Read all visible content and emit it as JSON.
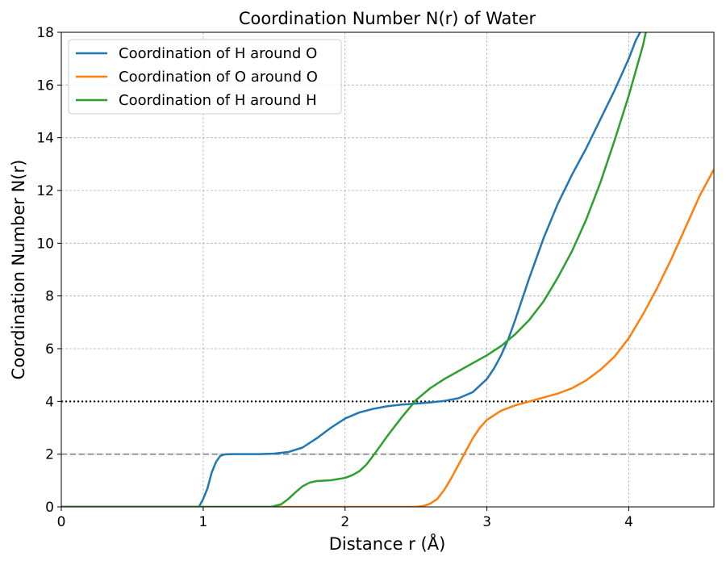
{
  "chart_data": {
    "type": "line",
    "title": "Coordination Number N(r) of Water",
    "xlabel": "Distance r (Å)",
    "ylabel": "Coordination Number N(r)",
    "xlim": [
      0,
      4.6
    ],
    "ylim": [
      0,
      18
    ],
    "x_ticks": [
      0,
      1,
      2,
      3,
      4
    ],
    "y_ticks": [
      0,
      2,
      4,
      6,
      8,
      10,
      12,
      14,
      16,
      18
    ],
    "x_tick_labels": [
      "0",
      "1",
      "2",
      "3",
      "4"
    ],
    "y_tick_labels": [
      "0",
      "2",
      "4",
      "6",
      "8",
      "10",
      "12",
      "14",
      "16",
      "18"
    ],
    "grid": true,
    "legend_position": "top-left",
    "series": [
      {
        "name": "Coordination of H around O",
        "color": "#1f77b4",
        "points": [
          [
            0,
            0
          ],
          [
            0.97,
            0
          ],
          [
            1.0,
            0.3
          ],
          [
            1.03,
            0.7
          ],
          [
            1.06,
            1.3
          ],
          [
            1.09,
            1.7
          ],
          [
            1.12,
            1.93
          ],
          [
            1.15,
            1.99
          ],
          [
            1.2,
            2.0
          ],
          [
            1.4,
            2.0
          ],
          [
            1.5,
            2.02
          ],
          [
            1.6,
            2.08
          ],
          [
            1.7,
            2.25
          ],
          [
            1.8,
            2.6
          ],
          [
            1.9,
            3.0
          ],
          [
            2.0,
            3.35
          ],
          [
            2.1,
            3.58
          ],
          [
            2.2,
            3.72
          ],
          [
            2.3,
            3.82
          ],
          [
            2.4,
            3.88
          ],
          [
            2.5,
            3.92
          ],
          [
            2.6,
            3.96
          ],
          [
            2.7,
            4.02
          ],
          [
            2.8,
            4.12
          ],
          [
            2.9,
            4.35
          ],
          [
            3.0,
            4.85
          ],
          [
            3.05,
            5.25
          ],
          [
            3.1,
            5.75
          ],
          [
            3.15,
            6.35
          ],
          [
            3.2,
            7.1
          ],
          [
            3.3,
            8.7
          ],
          [
            3.4,
            10.2
          ],
          [
            3.5,
            11.5
          ],
          [
            3.6,
            12.6
          ],
          [
            3.7,
            13.6
          ],
          [
            3.8,
            14.7
          ],
          [
            3.9,
            15.8
          ],
          [
            4.0,
            17.0
          ],
          [
            4.05,
            17.7
          ],
          [
            4.08,
            18.0
          ]
        ]
      },
      {
        "name": "Coordination of O around O",
        "color": "#ff7f0e",
        "points": [
          [
            0,
            0
          ],
          [
            2.5,
            0
          ],
          [
            2.55,
            0.03
          ],
          [
            2.6,
            0.12
          ],
          [
            2.65,
            0.3
          ],
          [
            2.7,
            0.65
          ],
          [
            2.75,
            1.1
          ],
          [
            2.8,
            1.6
          ],
          [
            2.85,
            2.1
          ],
          [
            2.9,
            2.6
          ],
          [
            2.95,
            3.0
          ],
          [
            3.0,
            3.3
          ],
          [
            3.1,
            3.65
          ],
          [
            3.2,
            3.85
          ],
          [
            3.3,
            4.0
          ],
          [
            3.4,
            4.15
          ],
          [
            3.5,
            4.3
          ],
          [
            3.6,
            4.5
          ],
          [
            3.7,
            4.8
          ],
          [
            3.8,
            5.2
          ],
          [
            3.9,
            5.7
          ],
          [
            4.0,
            6.4
          ],
          [
            4.1,
            7.3
          ],
          [
            4.2,
            8.3
          ],
          [
            4.3,
            9.4
          ],
          [
            4.4,
            10.6
          ],
          [
            4.5,
            11.8
          ],
          [
            4.6,
            12.8
          ]
        ]
      },
      {
        "name": "Coordination of H around H",
        "color": "#2ca02c",
        "points": [
          [
            0,
            0
          ],
          [
            1.48,
            0
          ],
          [
            1.55,
            0.1
          ],
          [
            1.6,
            0.3
          ],
          [
            1.65,
            0.55
          ],
          [
            1.7,
            0.78
          ],
          [
            1.75,
            0.92
          ],
          [
            1.8,
            0.98
          ],
          [
            1.9,
            1.01
          ],
          [
            2.0,
            1.1
          ],
          [
            2.05,
            1.2
          ],
          [
            2.1,
            1.35
          ],
          [
            2.15,
            1.6
          ],
          [
            2.2,
            1.95
          ],
          [
            2.3,
            2.7
          ],
          [
            2.4,
            3.4
          ],
          [
            2.5,
            4.05
          ],
          [
            2.6,
            4.5
          ],
          [
            2.7,
            4.85
          ],
          [
            2.8,
            5.15
          ],
          [
            2.9,
            5.45
          ],
          [
            3.0,
            5.75
          ],
          [
            3.1,
            6.1
          ],
          [
            3.2,
            6.55
          ],
          [
            3.3,
            7.1
          ],
          [
            3.4,
            7.8
          ],
          [
            3.5,
            8.7
          ],
          [
            3.6,
            9.7
          ],
          [
            3.7,
            10.9
          ],
          [
            3.8,
            12.3
          ],
          [
            3.9,
            13.9
          ],
          [
            4.0,
            15.6
          ],
          [
            4.1,
            17.5
          ],
          [
            4.12,
            18.0
          ]
        ]
      }
    ],
    "reference_lines": [
      {
        "y": 4,
        "style": "dotted",
        "color": "#000000"
      },
      {
        "y": 2,
        "style": "dashed",
        "color": "#808080"
      }
    ]
  }
}
